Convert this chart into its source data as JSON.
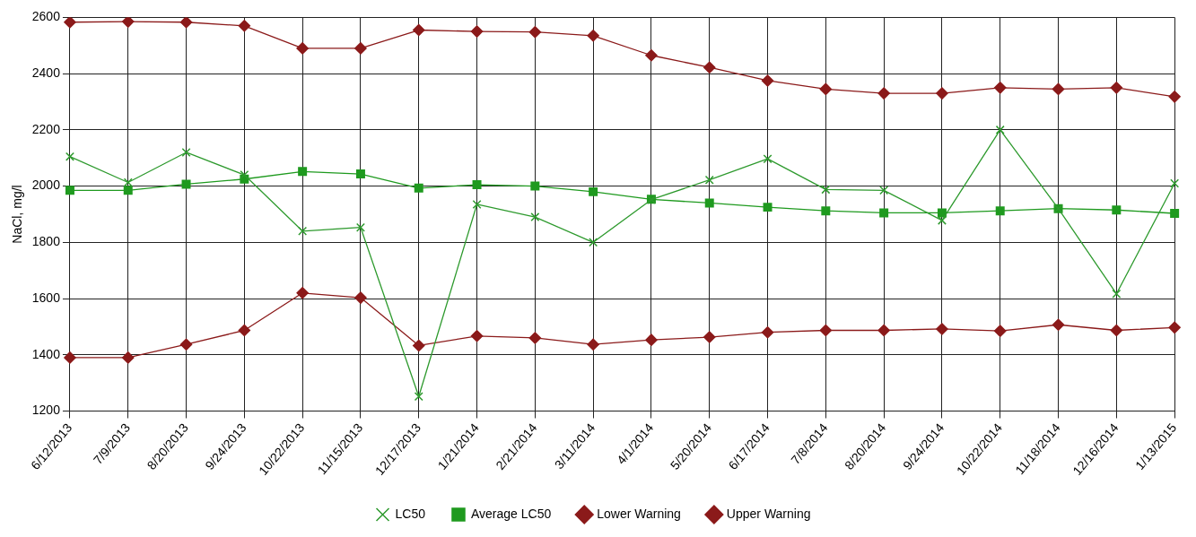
{
  "chart_data": {
    "type": "line",
    "ylabel": "NaCl, mg/l",
    "categories": [
      "6/12/2013",
      "7/9/2013",
      "8/20/2013",
      "9/24/2013",
      "10/22/2013",
      "11/15/2013",
      "12/17/2013",
      "1/21/2014",
      "2/21/2014",
      "3/11/2014",
      "4/1/2014",
      "5/20/2014",
      "6/17/2014",
      "7/8/2014",
      "8/20/2014",
      "9/24/2014",
      "10/22/2014",
      "11/18/2014",
      "12/16/2014",
      "1/13/2015"
    ],
    "series": [
      {
        "name": "LC50",
        "color": "#2e9a2e",
        "marker": "cross",
        "values": [
          2105,
          2013,
          2120,
          2040,
          1840,
          1853,
          1252,
          1935,
          1890,
          1800,
          1952,
          2022,
          2097,
          1988,
          1985,
          1878,
          2200,
          1920,
          1617,
          2010
        ]
      },
      {
        "name": "Average LC50",
        "color": "#1f9a1f",
        "marker": "square",
        "values": [
          1985,
          1985,
          2007,
          2025,
          2052,
          2043,
          1993,
          2005,
          2000,
          1980,
          1953,
          1940,
          1925,
          1912,
          1905,
          1905,
          1912,
          1920,
          1915,
          1903
        ]
      },
      {
        "name": "Lower Warning",
        "color": "#8b1a1a",
        "marker": "diamond",
        "values": [
          1390,
          1390,
          1437,
          1487,
          1620,
          1603,
          1433,
          1467,
          1460,
          1437,
          1453,
          1463,
          1480,
          1487,
          1487,
          1492,
          1485,
          1507,
          1487,
          1497
        ]
      },
      {
        "name": "Upper Warning",
        "color": "#8b1a1a",
        "marker": "diamond",
        "values": [
          2583,
          2585,
          2583,
          2570,
          2490,
          2490,
          2555,
          2550,
          2548,
          2535,
          2465,
          2422,
          2375,
          2345,
          2330,
          2330,
          2350,
          2345,
          2350,
          2318
        ]
      }
    ],
    "ylim": [
      1200,
      2600
    ],
    "yticks": [
      1200,
      1400,
      1600,
      1800,
      2000,
      2200,
      2400,
      2600
    ],
    "grid": true,
    "legend": "bottom",
    "line_style": "solid"
  }
}
